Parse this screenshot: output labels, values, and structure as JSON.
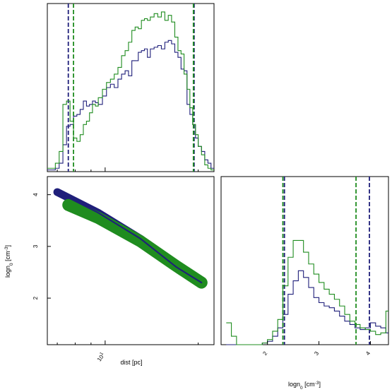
{
  "colors": {
    "series1": "#1f1f7a",
    "series2": "#1f8c1f"
  },
  "chart_data": [
    {
      "type": "line",
      "panel": "top-left",
      "xscale": "log",
      "xlim": [
        6.5,
        22.5
      ],
      "ylim": [
        0,
        1.0
      ],
      "grid": false,
      "series": [
        {
          "x": [
            6.5,
            6.7,
            6.9,
            7.1,
            7.3,
            7.5,
            7.7,
            7.9,
            8.1,
            8.3,
            8.5,
            8.7,
            8.9,
            9.1,
            9.3,
            9.5,
            9.8,
            10.1,
            10.4,
            10.7,
            11.0,
            11.3,
            11.6,
            11.9,
            12.2,
            12.5,
            12.8,
            13.1,
            13.4,
            13.7,
            14.0,
            14.4,
            14.8,
            15.2,
            15.6,
            16.0,
            16.4,
            16.8,
            17.2,
            17.6,
            18.0,
            18.4,
            18.8,
            19.2,
            19.6,
            20.0,
            20.5,
            21.0,
            21.5,
            22.0
          ],
          "values": [
            0.01,
            0.01,
            0.02,
            0.05,
            0.16,
            0.27,
            0.28,
            0.33,
            0.34,
            0.37,
            0.42,
            0.39,
            0.4,
            0.42,
            0.41,
            0.4,
            0.45,
            0.5,
            0.52,
            0.5,
            0.55,
            0.58,
            0.6,
            0.57,
            0.66,
            0.66,
            0.71,
            0.72,
            0.73,
            0.68,
            0.73,
            0.74,
            0.75,
            0.73,
            0.77,
            0.78,
            0.76,
            0.71,
            0.68,
            0.61,
            0.6,
            0.4,
            0.34,
            0.28,
            0.2,
            0.15,
            0.12,
            0.07,
            0.05,
            0.02
          ],
          "vlines": [
            7.6,
            19.4
          ]
        },
        {
          "x": [
            6.5,
            6.7,
            6.9,
            7.1,
            7.3,
            7.5,
            7.7,
            7.9,
            8.1,
            8.3,
            8.5,
            8.7,
            8.9,
            9.1,
            9.3,
            9.5,
            9.8,
            10.1,
            10.4,
            10.7,
            11.0,
            11.3,
            11.6,
            11.9,
            12.2,
            12.5,
            12.8,
            13.1,
            13.4,
            13.7,
            14.0,
            14.4,
            14.8,
            15.2,
            15.6,
            16.0,
            16.4,
            16.8,
            17.2,
            17.6,
            18.0,
            18.4,
            18.8,
            19.2,
            19.6,
            20.0,
            20.5,
            21.0,
            21.5,
            22.0
          ],
          "values": [
            0.02,
            0.02,
            0.05,
            0.12,
            0.4,
            0.42,
            0.3,
            0.2,
            0.18,
            0.22,
            0.28,
            0.3,
            0.35,
            0.4,
            0.39,
            0.44,
            0.49,
            0.53,
            0.55,
            0.58,
            0.62,
            0.69,
            0.72,
            0.77,
            0.84,
            0.86,
            0.85,
            0.9,
            0.91,
            0.9,
            0.92,
            0.94,
            0.92,
            0.95,
            0.9,
            0.93,
            0.89,
            0.8,
            0.72,
            0.7,
            0.58,
            0.49,
            0.38,
            0.28,
            0.22,
            0.15,
            0.1,
            0.04,
            0.02,
            0.01
          ],
          "vlines": [
            7.9,
            19.3
          ]
        }
      ]
    },
    {
      "type": "scatter",
      "panel": "bottom-left",
      "xlabel": "dist [pc]",
      "ylabel": "logn$_0$ [cm$^{-3}$]",
      "xscale": "log",
      "xlim": [
        6.5,
        22.5
      ],
      "ylim": [
        1.1,
        4.35
      ],
      "xticks": [
        {
          "value": 10,
          "label": "10$^1$"
        }
      ],
      "yticks": [
        2,
        3,
        4
      ],
      "grid": false,
      "series": [
        {
          "x": [
            7.0,
            9.5,
            13.0,
            17.0,
            20.5
          ],
          "values": [
            4.05,
            3.65,
            3.15,
            2.6,
            2.3
          ]
        },
        {
          "x": [
            7.6,
            9.5,
            13.0,
            17.0,
            20.5
          ],
          "values": [
            3.8,
            3.55,
            3.1,
            2.62,
            2.3
          ]
        }
      ]
    },
    {
      "type": "line",
      "panel": "bottom-right",
      "xlabel": "logn$_0$ [cm$^{-3}$]",
      "xlim": [
        1.1,
        4.35
      ],
      "ylim": [
        0,
        1.0
      ],
      "xticks": [
        2,
        3,
        4
      ],
      "grid": false,
      "series": [
        {
          "x": [
            1.2,
            1.3,
            1.4,
            1.5,
            1.6,
            1.7,
            1.8,
            1.9,
            2.0,
            2.1,
            2.2,
            2.3,
            2.4,
            2.5,
            2.6,
            2.7,
            2.8,
            2.9,
            3.0,
            3.1,
            3.2,
            3.3,
            3.4,
            3.5,
            3.6,
            3.7,
            3.8,
            3.9,
            4.0,
            4.1,
            4.2,
            4.3
          ],
          "values": [
            0.0,
            0.0,
            0.0,
            0.0,
            0.0,
            0.0,
            0.0,
            0.01,
            0.02,
            0.05,
            0.1,
            0.18,
            0.3,
            0.38,
            0.44,
            0.4,
            0.34,
            0.28,
            0.25,
            0.23,
            0.22,
            0.2,
            0.17,
            0.14,
            0.12,
            0.1,
            0.09,
            0.1,
            0.13,
            0.11,
            0.1,
            0.07
          ],
          "vlines": [
            2.33,
            3.98
          ]
        },
        {
          "x": [
            1.2,
            1.3,
            1.4,
            1.5,
            1.6,
            1.7,
            1.8,
            1.9,
            2.0,
            2.1,
            2.2,
            2.3,
            2.4,
            2.5,
            2.6,
            2.7,
            2.8,
            2.9,
            3.0,
            3.1,
            3.2,
            3.3,
            3.4,
            3.5,
            3.6,
            3.7,
            3.8,
            3.9,
            4.0,
            4.1,
            4.2,
            4.3
          ],
          "values": [
            0.13,
            0.05,
            0.0,
            0.0,
            0.0,
            0.0,
            0.0,
            0.01,
            0.03,
            0.08,
            0.15,
            0.35,
            0.52,
            0.62,
            0.62,
            0.55,
            0.48,
            0.42,
            0.37,
            0.33,
            0.3,
            0.27,
            0.23,
            0.18,
            0.14,
            0.12,
            0.1,
            0.09,
            0.08,
            0.06,
            0.07,
            0.2
          ],
          "vlines": [
            2.3,
            3.72
          ]
        }
      ]
    }
  ]
}
